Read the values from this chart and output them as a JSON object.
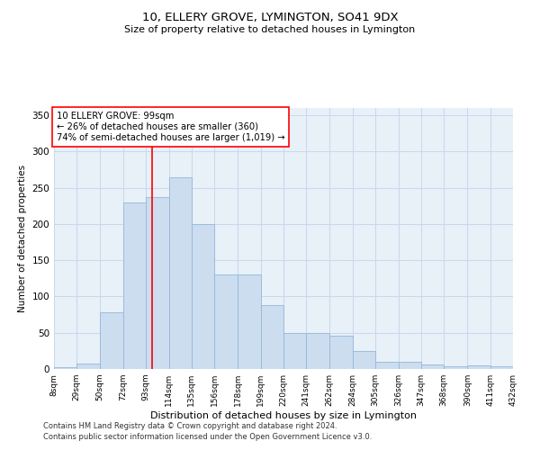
{
  "title": "10, ELLERY GROVE, LYMINGTON, SO41 9DX",
  "subtitle": "Size of property relative to detached houses in Lymington",
  "xlabel": "Distribution of detached houses by size in Lymington",
  "ylabel": "Number of detached properties",
  "bar_color": "#ccddf0",
  "bar_edge_color": "#92b8d8",
  "grid_color": "#c8d8ec",
  "bg_color": "#e8f0f8",
  "redline_x": 99,
  "annotation_line1": "10 ELLERY GROVE: 99sqm",
  "annotation_line2": "← 26% of detached houses are smaller (360)",
  "annotation_line3": "74% of semi-detached houses are larger (1,019) →",
  "footnote1": "Contains HM Land Registry data © Crown copyright and database right 2024.",
  "footnote2": "Contains public sector information licensed under the Open Government Licence v3.0.",
  "bin_edges": [
    8,
    29,
    50,
    72,
    93,
    114,
    135,
    156,
    178,
    199,
    220,
    241,
    262,
    284,
    305,
    326,
    347,
    368,
    390,
    411,
    432
  ],
  "bin_heights": [
    2,
    8,
    78,
    230,
    237,
    265,
    200,
    130,
    130,
    88,
    50,
    50,
    46,
    25,
    10,
    10,
    6,
    4,
    5,
    4
  ],
  "tick_labels": [
    "8sqm",
    "29sqm",
    "50sqm",
    "72sqm",
    "93sqm",
    "114sqm",
    "135sqm",
    "156sqm",
    "178sqm",
    "199sqm",
    "220sqm",
    "241sqm",
    "262sqm",
    "284sqm",
    "305sqm",
    "326sqm",
    "347sqm",
    "368sqm",
    "390sqm",
    "411sqm",
    "432sqm"
  ],
  "ylim": [
    0,
    360
  ],
  "yticks": [
    0,
    50,
    100,
    150,
    200,
    250,
    300,
    350
  ],
  "title_fontsize": 9.5,
  "subtitle_fontsize": 8,
  "ylabel_fontsize": 7.5,
  "xlabel_fontsize": 8,
  "tick_fontsize": 6.5,
  "ytick_fontsize": 7.5,
  "footnote_fontsize": 6.0
}
